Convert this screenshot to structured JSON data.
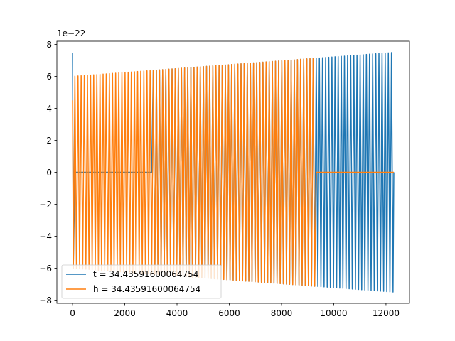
{
  "chart_data": {
    "type": "line",
    "title": "",
    "xlabel": "",
    "ylabel": "",
    "xlim": [
      -600,
      12900
    ],
    "ylim": [
      -8.2e-22,
      8.2e-22
    ],
    "y_offset_label": "1e−22",
    "xticks": [
      0,
      2000,
      4000,
      6000,
      8000,
      10000,
      12000
    ],
    "xtick_labels": [
      "0",
      "2000",
      "4000",
      "6000",
      "8000",
      "10000",
      "12000"
    ],
    "yticks": [
      -8e-22,
      -6e-22,
      -4e-22,
      -2e-22,
      0,
      2e-22,
      4e-22,
      6e-22,
      8e-22
    ],
    "ytick_labels": [
      "−8",
      "−6",
      "−4",
      "−2",
      "0",
      "2",
      "4",
      "6",
      "8"
    ],
    "grid": false,
    "legend_position": "lower-left",
    "series": [
      {
        "name": "t = 34.43591600064754",
        "color": "#1f77b4",
        "x_start": 0,
        "x_end": 12300,
        "cycle_length": 120,
        "silent_ranges": [
          [
            80,
            3050
          ]
        ],
        "amplitude_start": 6e-22,
        "amplitude_end": 7.5e-22,
        "initial_spike": 7.45e-22
      },
      {
        "name": "h = 34.43591600064754",
        "color": "#ff7f0e",
        "x_start": 0,
        "x_end": 12300,
        "cycle_length": 120,
        "silent_ranges": [
          [
            9300,
            12300
          ]
        ],
        "amplitude_start": 6e-22,
        "amplitude_end": 7.5e-22,
        "initial_spike": 4.5e-22
      }
    ]
  }
}
